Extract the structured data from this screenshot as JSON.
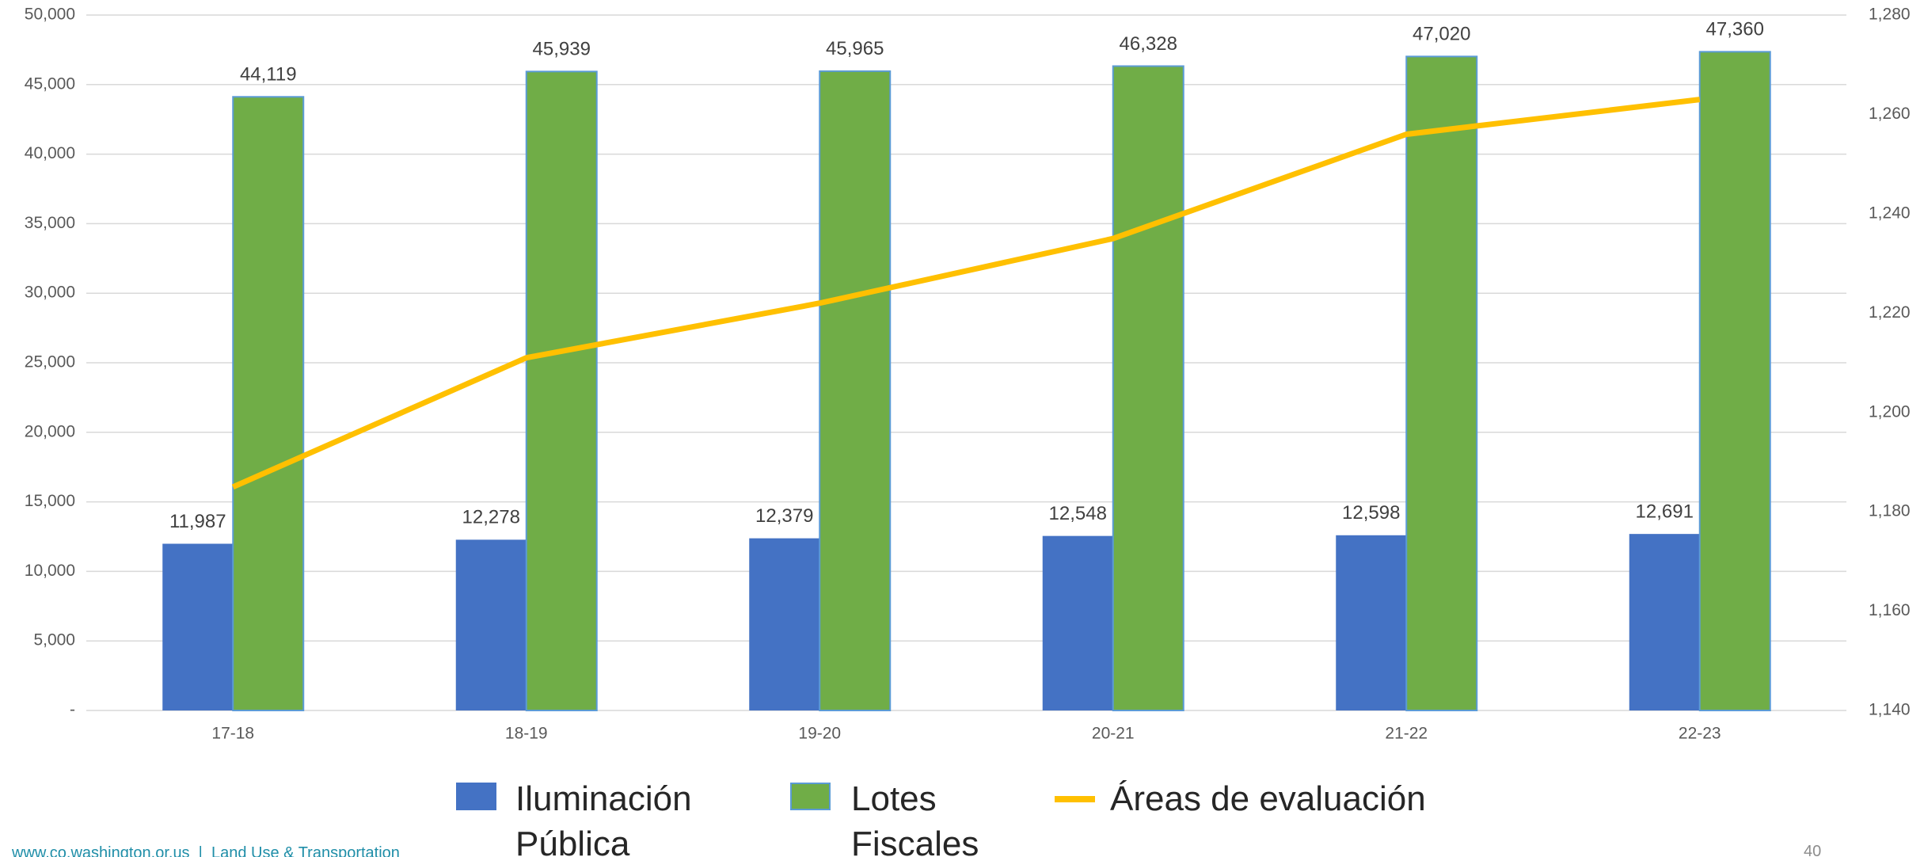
{
  "chart_data": {
    "type": "bar_line",
    "categories": [
      "17-18",
      "18-19",
      "19-20",
      "20-21",
      "21-22",
      "22-23"
    ],
    "series": [
      {
        "name": "Iluminación Pública",
        "type": "bar",
        "color": "#4472c4",
        "values": [
          11987,
          12278,
          12379,
          12548,
          12598,
          12691
        ],
        "value_labels": [
          "11,987",
          "12,278",
          "12,379",
          "12,548",
          "12,598",
          "12,691"
        ]
      },
      {
        "name": "Lotes Fiscales",
        "type": "bar",
        "color": "#70ad47",
        "values": [
          44119,
          45939,
          45965,
          46328,
          47020,
          47360
        ],
        "value_labels": [
          "44,119",
          "45,939",
          "45,965",
          "46,328",
          "47,020",
          "47,360"
        ]
      },
      {
        "name": "Áreas de evaluación",
        "type": "line",
        "axis": "y2",
        "color": "#ffc000",
        "values": [
          1185,
          1211,
          1222,
          1235,
          1256,
          1263
        ]
      }
    ],
    "ylim": [
      0,
      50000
    ],
    "yticks": [
      {
        "value": 0,
        "label": "-"
      },
      {
        "value": 5000,
        "label": "5,000"
      },
      {
        "value": 10000,
        "label": "10,000"
      },
      {
        "value": 15000,
        "label": "15,000"
      },
      {
        "value": 20000,
        "label": "20,000"
      },
      {
        "value": 25000,
        "label": "25,000"
      },
      {
        "value": 30000,
        "label": "30,000"
      },
      {
        "value": 35000,
        "label": "35,000"
      },
      {
        "value": 40000,
        "label": "40,000"
      },
      {
        "value": 45000,
        "label": "45,000"
      },
      {
        "value": 50000,
        "label": "50,000"
      }
    ],
    "y2lim": [
      1140,
      1280
    ],
    "y2ticks": [
      {
        "value": 1140,
        "label": "1,140"
      },
      {
        "value": 1160,
        "label": "1,160"
      },
      {
        "value": 1180,
        "label": "1,180"
      },
      {
        "value": 1200,
        "label": "1,200"
      },
      {
        "value": 1220,
        "label": "1,220"
      },
      {
        "value": 1240,
        "label": "1,240"
      },
      {
        "value": 1260,
        "label": "1,260"
      },
      {
        "value": 1280,
        "label": "1,280"
      }
    ],
    "grid": true,
    "legend": "bottom"
  },
  "footer": {
    "website": "www.co.washington.or.us  |  Land Use & Transportation",
    "page": "40"
  }
}
